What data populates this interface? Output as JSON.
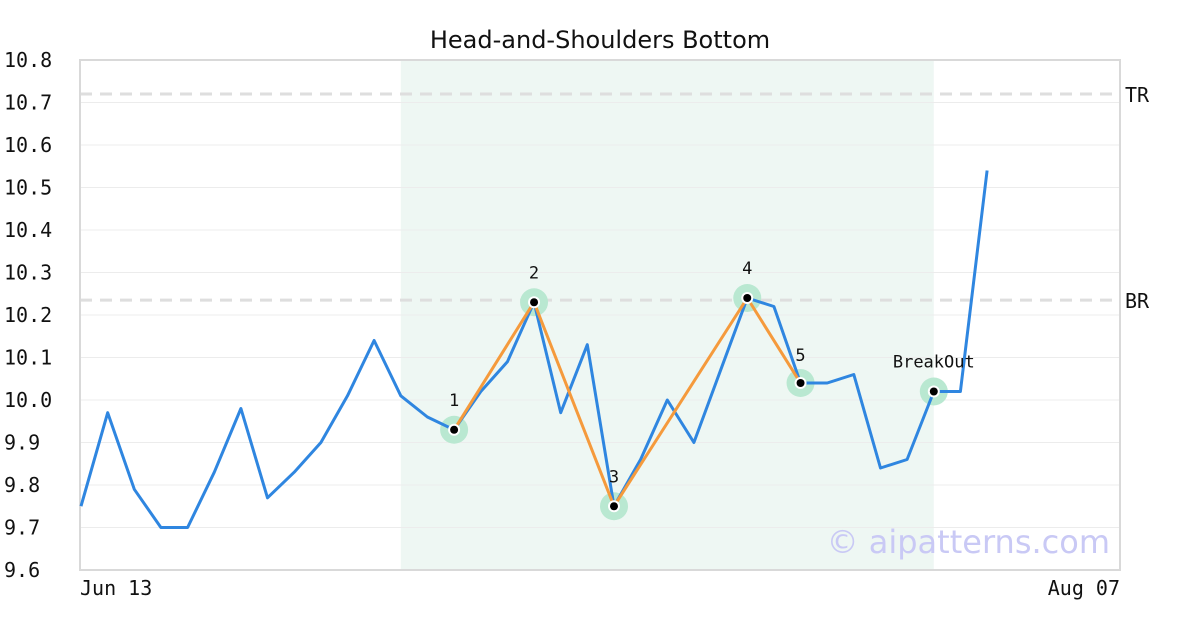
{
  "chart_data": {
    "type": "line",
    "title": "Head-and-Shoulders Bottom",
    "xlabel": "",
    "ylabel": "",
    "ylim": [
      9.6,
      10.8
    ],
    "y_ticks": [
      "9.6",
      "9.7",
      "9.8",
      "9.9",
      "10.0",
      "10.1",
      "10.2",
      "10.3",
      "10.4",
      "10.5",
      "10.6",
      "10.7",
      "10.8"
    ],
    "x_tick_labels": [
      "Jun 13",
      "Aug 07"
    ],
    "grid": "horizontal",
    "price_series": {
      "color": "#2f86e0",
      "values": [
        9.75,
        9.97,
        9.79,
        9.7,
        9.7,
        9.83,
        9.98,
        9.77,
        9.83,
        9.9,
        10.01,
        10.14,
        10.01,
        9.96,
        9.93,
        10.02,
        10.09,
        10.23,
        9.97,
        10.13,
        9.75,
        9.86,
        10.0,
        9.9,
        10.07,
        10.24,
        10.22,
        10.04,
        10.04,
        10.06,
        9.84,
        9.86,
        10.02,
        10.02,
        10.54
      ]
    },
    "pattern_series": {
      "color": "#f59a3c",
      "points": [
        {
          "label": "1",
          "index": 14,
          "value": 9.93
        },
        {
          "label": "2",
          "index": 17,
          "value": 10.23
        },
        {
          "label": "3",
          "index": 20,
          "value": 9.75
        },
        {
          "label": "4",
          "index": 25,
          "value": 10.24
        },
        {
          "label": "5",
          "index": 27,
          "value": 10.04
        }
      ]
    },
    "breakout": {
      "label": "BreakOut",
      "index": 32,
      "value": 10.02
    },
    "reference_lines": [
      {
        "label": "TR",
        "value": 10.72
      },
      {
        "label": "BR",
        "value": 10.235
      }
    ],
    "pattern_region": {
      "start_index": 12,
      "end_index": 32,
      "color": "#eef7f3"
    }
  },
  "watermark": "© aipatterns.com"
}
